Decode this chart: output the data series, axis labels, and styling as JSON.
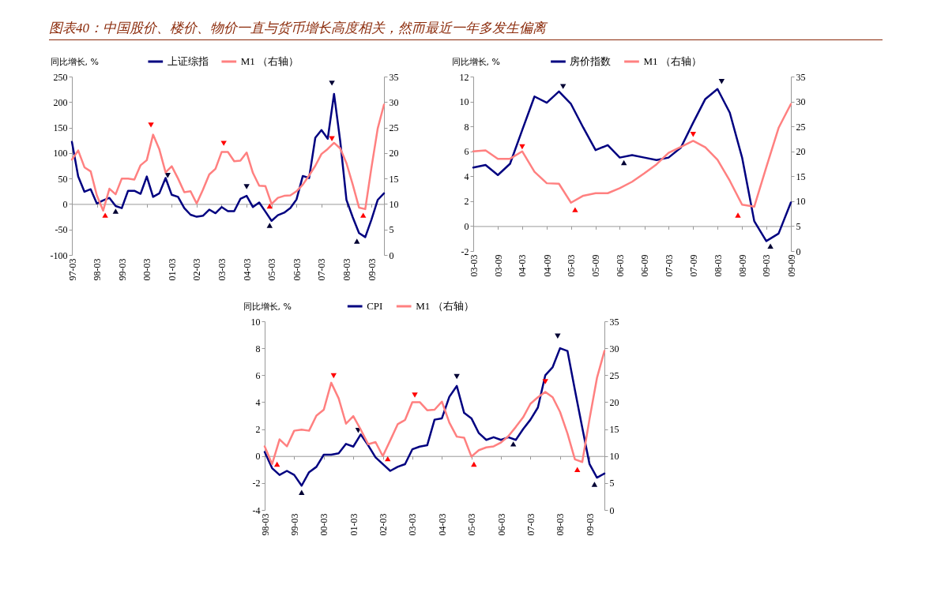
{
  "chart_data": [
    {
      "type": "line",
      "title": "图表40：中国股价、楼价、物价一直与货币增长高度相关，然而最近一年多发生偏离",
      "ylabel": "同比增长, %",
      "legend": "top",
      "x": [
        "1997-03",
        "1997-06",
        "1997-09",
        "1997-12",
        "1998-03",
        "1998-06",
        "1998-09",
        "1998-12",
        "1999-03",
        "1999-06",
        "1999-09",
        "1999-12",
        "2000-03",
        "2000-06",
        "2000-09",
        "2000-12",
        "2001-03",
        "2001-06",
        "2001-09",
        "2001-12",
        "2002-03",
        "2002-06",
        "2002-09",
        "2002-12",
        "2003-03",
        "2003-06",
        "2003-09",
        "2003-12",
        "2004-03",
        "2004-06",
        "2004-09",
        "2004-12",
        "2005-03",
        "2005-06",
        "2005-09",
        "2005-12",
        "2006-03",
        "2006-06",
        "2006-09",
        "2006-12",
        "2007-03",
        "2007-06",
        "2007-09",
        "2007-12",
        "2008-03",
        "2008-06",
        "2008-09",
        "2008-12",
        "2009-03",
        "2009-06",
        "2009-09"
      ],
      "xlim": [
        "1997-03",
        "2009-09"
      ],
      "xticks": [
        {
          "value": "1997-03",
          "label": "97-03"
        },
        {
          "value": "1998-03",
          "label": "98-03"
        },
        {
          "value": "1999-03",
          "label": "99-03"
        },
        {
          "value": "2000-03",
          "label": "00-03"
        },
        {
          "value": "2001-03",
          "label": "01-03"
        },
        {
          "value": "2002-03",
          "label": "02-03"
        },
        {
          "value": "2003-03",
          "label": "03-03"
        },
        {
          "value": "2004-03",
          "label": "04-03"
        },
        {
          "value": "2005-03",
          "label": "05-03"
        },
        {
          "value": "2006-03",
          "label": "06-03"
        },
        {
          "value": "2007-03",
          "label": "07-03"
        },
        {
          "value": "2008-03",
          "label": "08-03"
        },
        {
          "value": "2009-03",
          "label": "09-03"
        }
      ],
      "ylim": [
        -100,
        250
      ],
      "yticks": [
        -100,
        -50,
        0,
        50,
        100,
        150,
        200,
        250
      ],
      "y2lim": [
        0,
        35
      ],
      "y2ticks": [
        0,
        5,
        10,
        15,
        20,
        25,
        30,
        35
      ],
      "series": [
        {
          "name": "上证综指",
          "color": "#000080",
          "values": [
            122,
            54,
            24,
            29,
            1,
            7,
            12,
            -4,
            -8,
            26,
            26,
            20,
            54,
            14,
            21,
            51,
            18,
            14,
            -8,
            -21,
            -25,
            -23,
            -11,
            -18,
            -6,
            -14,
            -14,
            10,
            16,
            -6,
            3,
            -15,
            -33,
            -22,
            -17,
            -8,
            9,
            55,
            51,
            130,
            145,
            128,
            216,
            123,
            8,
            -26,
            -57,
            -65,
            -31,
            8,
            21
          ]
        },
        {
          "name": "M1 （右轴）",
          "color": "#ff8080",
          "axis": "y2",
          "values": [
            18.7,
            20.5,
            17.2,
            16.4,
            11.7,
            8.7,
            13.0,
            11.9,
            15.0,
            15.0,
            14.8,
            17.6,
            18.6,
            23.6,
            20.7,
            16.2,
            17.4,
            15.0,
            12.3,
            12.5,
            10.1,
            12.8,
            15.8,
            16.9,
            20.2,
            20.2,
            18.4,
            18.5,
            20.1,
            16.1,
            13.6,
            13.5,
            10.0,
            11.2,
            11.6,
            11.7,
            12.5,
            13.8,
            15.6,
            17.5,
            19.8,
            20.8,
            22.0,
            20.9,
            18.0,
            13.8,
            9.3,
            9.0,
            17.1,
            24.8,
            29.5
          ]
        },
        {
          "type": "scatter",
          "marker": "triangle-down",
          "color": "#ff0000",
          "axis": "y2",
          "x": [
            "2000-05",
            "2003-04",
            "2007-08"
          ],
          "values": [
            25.5,
            21.9,
            22.8
          ]
        },
        {
          "type": "scatter",
          "marker": "triangle",
          "color": "#ff0000",
          "axis": "y2",
          "x": [
            "1998-07",
            "2005-02",
            "2008-11"
          ],
          "values": [
            7.8,
            9.6,
            7.8
          ]
        },
        {
          "type": "scatter",
          "marker": "triangle-down",
          "color": "#000033",
          "x": [
            "2001-01",
            "2004-03",
            "2007-08"
          ],
          "values": [
            56,
            34,
            237
          ]
        },
        {
          "type": "scatter",
          "marker": "triangle",
          "color": "#000033",
          "x": [
            "1998-12",
            "2005-02",
            "2008-08"
          ],
          "values": [
            -14,
            -42,
            -73
          ]
        }
      ]
    },
    {
      "type": "line",
      "ylabel": "同比增长, %",
      "legend": "top",
      "x": [
        "2003-03",
        "2003-06",
        "2003-09",
        "2003-12",
        "2004-03",
        "2004-06",
        "2004-09",
        "2004-12",
        "2005-03",
        "2005-06",
        "2005-09",
        "2005-12",
        "2006-03",
        "2006-06",
        "2006-09",
        "2006-12",
        "2007-03",
        "2007-06",
        "2007-09",
        "2007-12",
        "2008-03",
        "2008-06",
        "2008-09",
        "2008-12",
        "2009-03",
        "2009-06",
        "2009-09"
      ],
      "xlim": [
        "2003-03",
        "2009-09"
      ],
      "xticks": [
        {
          "value": "2003-03",
          "label": "03-03"
        },
        {
          "value": "2003-09",
          "label": "03-09"
        },
        {
          "value": "2004-03",
          "label": "04-03"
        },
        {
          "value": "2004-09",
          "label": "04-09"
        },
        {
          "value": "2005-03",
          "label": "05-03"
        },
        {
          "value": "2005-09",
          "label": "05-09"
        },
        {
          "value": "2006-03",
          "label": "06-03"
        },
        {
          "value": "2006-09",
          "label": "06-09"
        },
        {
          "value": "2007-03",
          "label": "07-03"
        },
        {
          "value": "2007-09",
          "label": "07-09"
        },
        {
          "value": "2008-03",
          "label": "08-03"
        },
        {
          "value": "2008-09",
          "label": "08-09"
        },
        {
          "value": "2009-03",
          "label": "09-03"
        },
        {
          "value": "2009-09",
          "label": "09-09"
        }
      ],
      "ylim": [
        -2,
        12
      ],
      "yticks": [
        -2,
        0,
        2,
        4,
        6,
        8,
        10,
        12
      ],
      "y2lim": [
        0,
        35
      ],
      "y2ticks": [
        0,
        5,
        10,
        15,
        20,
        25,
        30,
        35
      ],
      "series": [
        {
          "name": "房价指数",
          "color": "#000080",
          "values": [
            4.7,
            4.9,
            4.1,
            5.0,
            7.7,
            10.4,
            9.9,
            10.8,
            9.8,
            7.9,
            6.1,
            6.5,
            5.5,
            5.7,
            5.5,
            5.3,
            5.5,
            6.3,
            8.3,
            10.2,
            11.0,
            9.1,
            5.5,
            0.4,
            -1.2,
            -0.6,
            1.9
          ]
        },
        {
          "name": "M1 （右轴）",
          "color": "#ff8080",
          "axis": "y2",
          "values": [
            20.0,
            20.2,
            18.5,
            18.5,
            20.0,
            15.9,
            13.6,
            13.5,
            9.7,
            11.1,
            11.6,
            11.6,
            12.6,
            13.9,
            15.6,
            17.4,
            19.7,
            20.9,
            22.1,
            20.8,
            18.3,
            14.1,
            9.3,
            8.9,
            16.8,
            24.7,
            29.5
          ]
        },
        {
          "type": "scatter",
          "marker": "triangle-down",
          "color": "#ff0000",
          "axis": "y2",
          "x": [
            "2004-03",
            "2007-09"
          ],
          "values": [
            20.9,
            23.4
          ]
        },
        {
          "type": "scatter",
          "marker": "triangle",
          "color": "#ff0000",
          "axis": "y2",
          "x": [
            "2005-04",
            "2008-08"
          ],
          "values": [
            8.3,
            7.2
          ]
        },
        {
          "type": "scatter",
          "marker": "triangle-down",
          "color": "#000033",
          "x": [
            "2005-01",
            "2008-04"
          ],
          "values": [
            11.2,
            11.6
          ]
        },
        {
          "type": "scatter",
          "marker": "triangle",
          "color": "#000033",
          "x": [
            "2006-04",
            "2009-04"
          ],
          "values": [
            5.1,
            -1.6
          ]
        }
      ]
    },
    {
      "type": "line",
      "ylabel": "同比增长, %",
      "legend": "top",
      "x": [
        "1998-03",
        "1998-06",
        "1998-09",
        "1998-12",
        "1999-03",
        "1999-06",
        "1999-09",
        "1999-12",
        "2000-03",
        "2000-06",
        "2000-09",
        "2000-12",
        "2001-03",
        "2001-06",
        "2001-09",
        "2001-12",
        "2002-03",
        "2002-06",
        "2002-09",
        "2002-12",
        "2003-03",
        "2003-06",
        "2003-09",
        "2003-12",
        "2004-03",
        "2004-06",
        "2004-09",
        "2004-12",
        "2005-03",
        "2005-06",
        "2005-09",
        "2005-12",
        "2006-03",
        "2006-06",
        "2006-09",
        "2006-12",
        "2007-03",
        "2007-06",
        "2007-09",
        "2007-12",
        "2008-03",
        "2008-06",
        "2008-09",
        "2008-12",
        "2009-03",
        "2009-06",
        "2009-09"
      ],
      "xlim": [
        "1998-03",
        "2009-09"
      ],
      "xticks": [
        {
          "value": "1998-03",
          "label": "98-03"
        },
        {
          "value": "1999-03",
          "label": "99-03"
        },
        {
          "value": "2000-03",
          "label": "00-03"
        },
        {
          "value": "2001-03",
          "label": "01-03"
        },
        {
          "value": "2002-03",
          "label": "02-03"
        },
        {
          "value": "2003-03",
          "label": "03-03"
        },
        {
          "value": "2004-03",
          "label": "04-03"
        },
        {
          "value": "2005-03",
          "label": "05-03"
        },
        {
          "value": "2006-03",
          "label": "06-03"
        },
        {
          "value": "2007-03",
          "label": "07-03"
        },
        {
          "value": "2008-03",
          "label": "08-03"
        },
        {
          "value": "2009-03",
          "label": "09-03"
        }
      ],
      "ylim": [
        -4,
        10
      ],
      "yticks": [
        -4,
        -2,
        0,
        2,
        4,
        6,
        8,
        10
      ],
      "y2lim": [
        0,
        35
      ],
      "y2ticks": [
        0,
        5,
        10,
        15,
        20,
        25,
        30,
        35
      ],
      "series": [
        {
          "name": "CPI",
          "color": "#000080",
          "values": [
            0.3,
            -0.9,
            -1.4,
            -1.1,
            -1.4,
            -2.2,
            -1.2,
            -0.8,
            0.1,
            0.1,
            0.2,
            0.9,
            0.7,
            1.6,
            0.8,
            -0.1,
            -0.6,
            -1.1,
            -0.8,
            -0.6,
            0.5,
            0.7,
            0.8,
            2.7,
            2.8,
            4.4,
            5.2,
            3.2,
            2.8,
            1.7,
            1.2,
            1.4,
            1.2,
            1.4,
            1.2,
            2.0,
            2.7,
            3.6,
            6.0,
            6.6,
            8.0,
            7.8,
            4.9,
            2.1,
            -0.6,
            -1.6,
            -1.3
          ]
        },
        {
          "name": "M1 （右轴）",
          "color": "#ff8080",
          "axis": "y2",
          "values": [
            11.8,
            8.5,
            13.1,
            11.8,
            14.7,
            14.9,
            14.7,
            17.5,
            18.6,
            23.6,
            20.7,
            16.0,
            17.4,
            14.9,
            12.2,
            12.6,
            10.0,
            12.9,
            15.9,
            16.7,
            20.0,
            20.0,
            18.5,
            18.6,
            20.1,
            16.2,
            13.6,
            13.4,
            9.9,
            11.1,
            11.6,
            11.8,
            12.5,
            13.7,
            15.4,
            17.2,
            19.7,
            20.9,
            21.9,
            20.9,
            18.2,
            14.2,
            9.4,
            8.9,
            16.9,
            24.5,
            29.5
          ]
        },
        {
          "type": "scatter",
          "marker": "triangle-down",
          "color": "#ff0000",
          "axis": "y2",
          "x": [
            "2000-07",
            "2003-04",
            "2007-09"
          ],
          "values": [
            24.9,
            21.3,
            23.8
          ]
        },
        {
          "type": "scatter",
          "marker": "triangle",
          "color": "#ff0000",
          "axis": "y2",
          "x": [
            "1998-08",
            "2002-05",
            "2005-04",
            "2008-10"
          ],
          "values": [
            8.5,
            9.5,
            8.5,
            7.5
          ]
        },
        {
          "type": "scatter",
          "marker": "triangle-down",
          "color": "#000033",
          "x": [
            "2001-05",
            "2004-09",
            "2008-02"
          ],
          "values": [
            1.9,
            5.9,
            8.9
          ]
        },
        {
          "type": "scatter",
          "marker": "triangle",
          "color": "#000033",
          "x": [
            "1999-06",
            "2006-08",
            "2009-05"
          ],
          "values": [
            -2.7,
            0.9,
            -2.1
          ]
        }
      ]
    }
  ]
}
